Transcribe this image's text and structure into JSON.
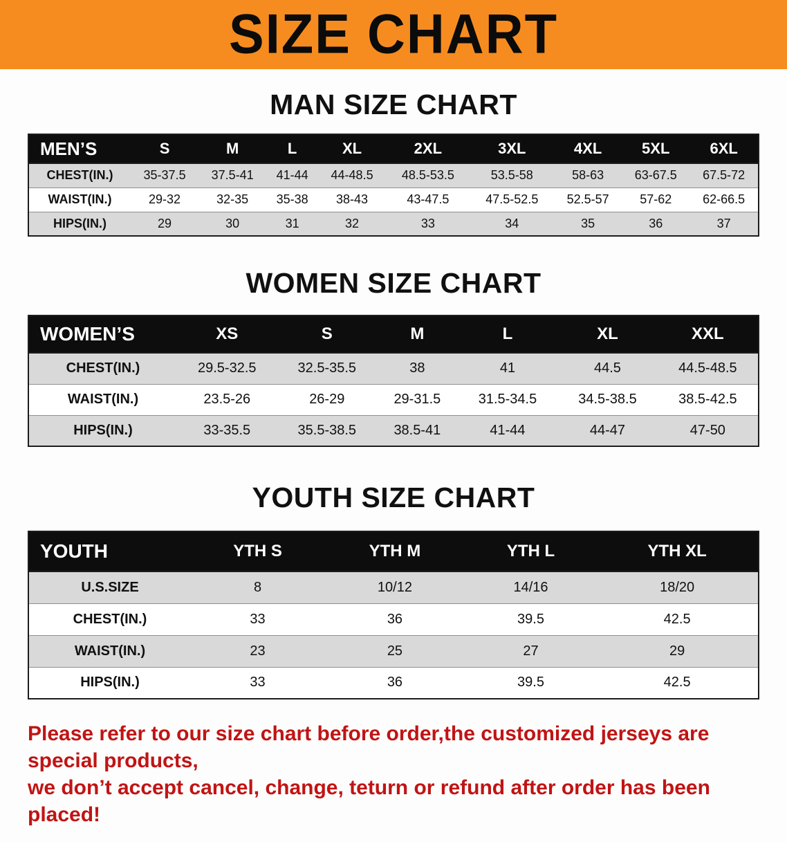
{
  "banner": {
    "title": "SIZE CHART"
  },
  "colors": {
    "banner_bg": "#f68c1f",
    "header_bg": "#0d0d0d",
    "row_alt": "#d9d9d9",
    "note_red": "#c01414"
  },
  "man": {
    "heading": "MAN SIZE CHART",
    "table": {
      "header": [
        "MEN’S",
        "S",
        "M",
        "L",
        "XL",
        "2XL",
        "3XL",
        "4XL",
        "5XL",
        "6XL"
      ],
      "rows": [
        [
          "CHEST(IN.)",
          "35-37.5",
          "37.5-41",
          "41-44",
          "44-48.5",
          "48.5-53.5",
          "53.5-58",
          "58-63",
          "63-67.5",
          "67.5-72"
        ],
        [
          "WAIST(IN.)",
          "29-32",
          "32-35",
          "35-38",
          "38-43",
          "43-47.5",
          "47.5-52.5",
          "52.5-57",
          "57-62",
          "62-66.5"
        ],
        [
          "HIPS(IN.)",
          "29",
          "30",
          "31",
          "32",
          "33",
          "34",
          "35",
          "36",
          "37"
        ]
      ]
    }
  },
  "women": {
    "heading": "WOMEN SIZE CHART",
    "table": {
      "header": [
        "WOMEN’S",
        "XS",
        "S",
        "M",
        "L",
        "XL",
        "XXL"
      ],
      "rows": [
        [
          "CHEST(IN.)",
          "29.5-32.5",
          "32.5-35.5",
          "38",
          "41",
          "44.5",
          "44.5-48.5"
        ],
        [
          "WAIST(IN.)",
          "23.5-26",
          "26-29",
          "29-31.5",
          "31.5-34.5",
          "34.5-38.5",
          "38.5-42.5"
        ],
        [
          "HIPS(IN.)",
          "33-35.5",
          "35.5-38.5",
          "38.5-41",
          "41-44",
          "44-47",
          "47-50"
        ]
      ]
    }
  },
  "youth": {
    "heading": "YOUTH SIZE CHART",
    "table": {
      "header": [
        "YOUTH",
        "YTH S",
        "YTH M",
        "YTH L",
        "YTH XL"
      ],
      "rows": [
        [
          "U.S.SIZE",
          "8",
          "10/12",
          "14/16",
          "18/20"
        ],
        [
          "CHEST(IN.)",
          "33",
          "36",
          "39.5",
          "42.5"
        ],
        [
          "WAIST(IN.)",
          "23",
          "25",
          "27",
          "29"
        ],
        [
          "HIPS(IN.)",
          "33",
          "36",
          "39.5",
          "42.5"
        ]
      ]
    }
  },
  "note": {
    "line1": "Please refer to our size chart before order,the customized jerseys are special products,",
    "line2": "we don’t accept cancel, change, teturn or refund after order has been placed!"
  }
}
